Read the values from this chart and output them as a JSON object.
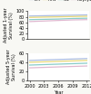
{
  "years": [
    2000,
    2003,
    2006,
    2009,
    2012
  ],
  "legend_labels": [
    "DM",
    "HTN",
    "GN",
    "Polycystic"
  ],
  "legend_colors": [
    "#aabce0",
    "#e8d878",
    "#88ccc8",
    "#e0b8d0"
  ],
  "top_chart": {
    "ylabel": "Adjusted 1-year\nSurvival (%)",
    "ylim": [
      0,
      100
    ],
    "yticks": [
      0,
      20,
      40,
      60,
      80,
      100
    ],
    "lines": [
      [
        83,
        84,
        85,
        86,
        87
      ],
      [
        78,
        79,
        80,
        81,
        82
      ],
      [
        70,
        71,
        72,
        74,
        75
      ],
      [
        63,
        65,
        67,
        69,
        70
      ]
    ]
  },
  "bottom_chart": {
    "ylabel": "Adjusted 5-year\nSurvival (%)",
    "xlabel": "Year",
    "ylim": [
      0,
      60
    ],
    "yticks": [
      0,
      20,
      40,
      60
    ],
    "lines": [
      [
        44,
        45,
        46,
        47,
        48
      ],
      [
        40,
        41,
        42,
        43,
        44
      ],
      [
        34,
        35,
        36,
        37,
        38
      ],
      [
        28,
        29,
        30,
        31,
        32
      ]
    ]
  },
  "background_color": "#f8f8f4",
  "plot_bg": "#ffffff",
  "line_width": 0.9,
  "font_size": 3.5
}
